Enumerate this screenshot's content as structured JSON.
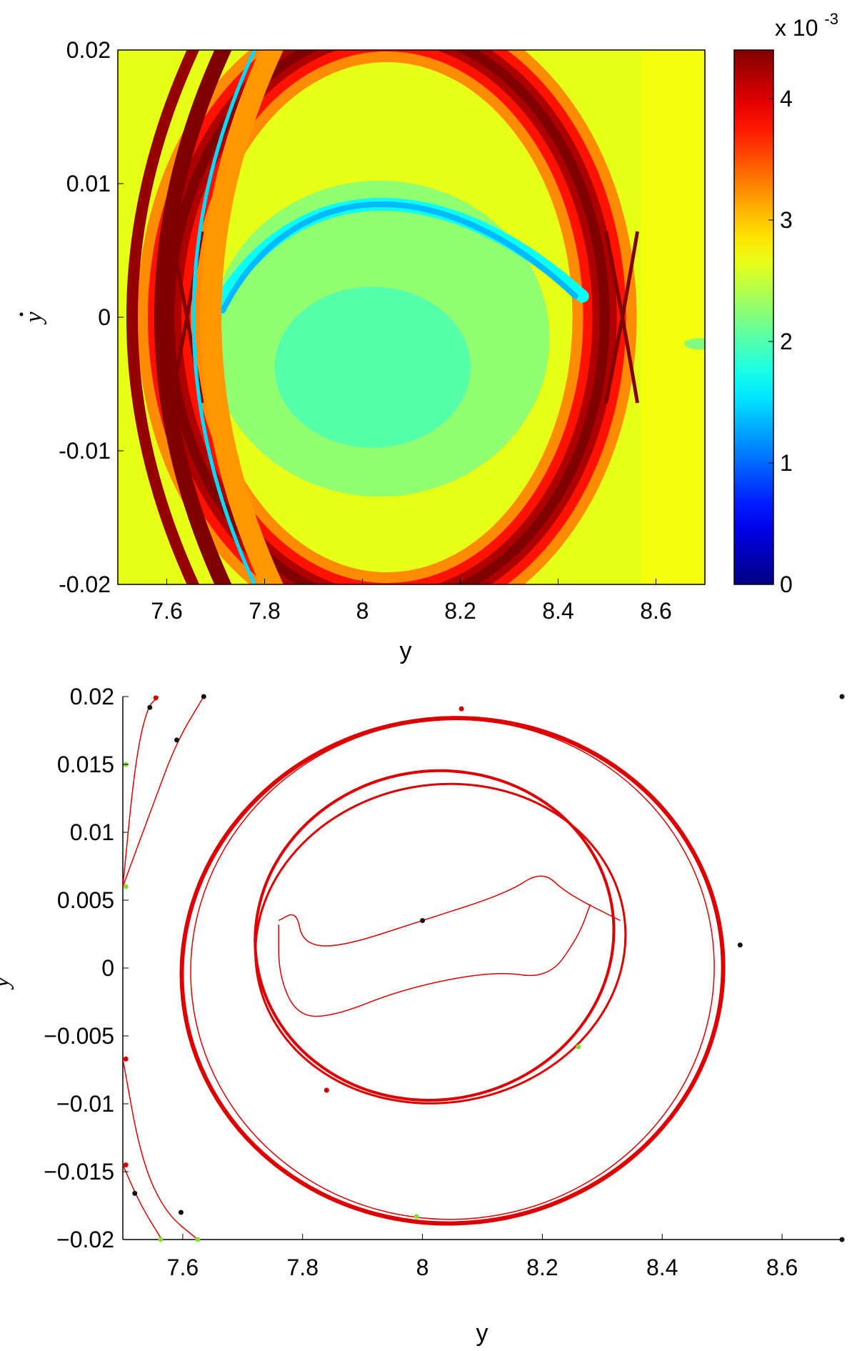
{
  "chart_data": [
    {
      "type": "heatmap",
      "title": "",
      "xlabel": "y",
      "ylabel": "y",
      "ylabel_has_dot": true,
      "xlim": [
        7.5,
        8.7
      ],
      "ylim": [
        -0.02,
        0.02
      ],
      "x_ticks": [
        "7.6",
        "7.8",
        "8",
        "8.2",
        "8.4",
        "8.6"
      ],
      "x_tick_values": [
        7.6,
        7.8,
        8.0,
        8.2,
        8.4,
        8.6
      ],
      "y_ticks": [
        "0.02",
        "0.01",
        "0",
        "-0.01",
        "-0.02"
      ],
      "y_tick_values": [
        0.02,
        0.01,
        0,
        -0.01,
        -0.02
      ],
      "colorbar": {
        "colormap": "jet",
        "range": [
          0,
          4.4
        ],
        "ticks": [
          "0",
          "1",
          "2",
          "3",
          "4"
        ],
        "tick_values": [
          0,
          1,
          2,
          3,
          4
        ],
        "multiplier_prefix": "x 10",
        "multiplier_exponent": "-3"
      },
      "features": {
        "outer_ridge_center": [
          8.05,
          0.0
        ],
        "outer_ridge_radius_x": 0.445,
        "outer_ridge_radius_y": 0.0215,
        "saddle_points": [
          [
            7.64,
            0.0
          ],
          [
            8.53,
            0.0
          ]
        ],
        "inner_low_arc_peak": [
          8.03,
          0.0093
        ],
        "left_ridges_x_at_zero": [
          7.53,
          7.58,
          7.62
        ]
      }
    },
    {
      "type": "line",
      "title": "",
      "xlabel": "y",
      "ylabel": "y",
      "xlim": [
        7.5,
        8.7
      ],
      "ylim": [
        -0.02,
        0.02
      ],
      "x_ticks": [
        "7.6",
        "7.8",
        "8",
        "8.2",
        "8.4",
        "8.6"
      ],
      "x_tick_values": [
        7.6,
        7.8,
        8.0,
        8.2,
        8.4,
        8.6
      ],
      "y_ticks": [
        "0.02",
        "0.015",
        "0.01",
        "0.005",
        "0",
        "−0.005",
        "−0.01",
        "−0.015",
        "−0.02"
      ],
      "y_tick_values": [
        0.02,
        0.015,
        0.01,
        0.005,
        0,
        -0.005,
        -0.01,
        -0.015,
        -0.02
      ],
      "series_color": "#dd0000",
      "series": [
        {
          "kind": "ellipse",
          "cx": 8.05,
          "cy": -0.0002,
          "rx": 0.452,
          "ry": 0.0186,
          "rot": -6,
          "stroke": 6
        },
        {
          "kind": "ellipse",
          "cx": 8.05,
          "cy": -0.0001,
          "rx": 0.437,
          "ry": 0.0184,
          "rot": -6,
          "stroke": 1.5
        },
        {
          "kind": "ellipse",
          "cx": 8.02,
          "cy": 0.0024,
          "rx": 0.3,
          "ry": 0.0121,
          "rot": -10,
          "stroke": 4
        },
        {
          "kind": "ellipse",
          "cx": 8.03,
          "cy": 0.0018,
          "rx": 0.31,
          "ry": 0.0117,
          "rot": -10,
          "stroke": 3
        },
        {
          "kind": "curve",
          "points": [
            [
              7.76,
              0.0035
            ],
            [
              7.79,
              0.0042
            ],
            [
              7.8,
              0.0018
            ],
            [
              7.86,
              0.0015
            ],
            [
              8.0,
              0.0035
            ],
            [
              8.14,
              0.0055
            ],
            [
              8.2,
              0.0072
            ],
            [
              8.24,
              0.0055
            ],
            [
              8.33,
              0.0035
            ]
          ],
          "stroke": 1.5
        },
        {
          "kind": "curve",
          "points": [
            [
              7.76,
              0.0032
            ],
            [
              7.76,
              -0.0005
            ],
            [
              7.79,
              -0.0035
            ],
            [
              7.85,
              -0.0036
            ],
            [
              7.97,
              -0.0015
            ],
            [
              8.12,
              -0.0002
            ],
            [
              8.21,
              -0.0008
            ],
            [
              8.26,
              0.0023
            ],
            [
              8.28,
              0.0047
            ]
          ],
          "stroke": 1.5
        },
        {
          "kind": "curve",
          "points": [
            [
              7.5,
              0.006
            ],
            [
              7.52,
              0.015
            ],
            [
              7.54,
              0.0192
            ],
            [
              7.56,
              0.02
            ]
          ],
          "stroke": 1.5
        },
        {
          "kind": "curve",
          "points": [
            [
              7.5,
              0.006
            ],
            [
              7.55,
              0.012
            ],
            [
              7.59,
              0.0167
            ],
            [
              7.635,
              0.02
            ]
          ],
          "stroke": 1.5
        },
        {
          "kind": "curve",
          "points": [
            [
              7.5,
              -0.0067
            ],
            [
              7.53,
              -0.014
            ],
            [
              7.57,
              -0.018
            ],
            [
              7.625,
              -0.02
            ]
          ],
          "stroke": 1.5
        },
        {
          "kind": "curve",
          "points": [
            [
              7.5,
              -0.0145
            ],
            [
              7.53,
              -0.0175
            ],
            [
              7.565,
              -0.02
            ]
          ],
          "stroke": 1.5
        }
      ],
      "markers": [
        {
          "x": 7.555,
          "y": 0.0199,
          "color": "#cc0000"
        },
        {
          "x": 7.545,
          "y": 0.0192,
          "color": "#111111"
        },
        {
          "x": 7.59,
          "y": 0.0168,
          "color": "#111111"
        },
        {
          "x": 7.635,
          "y": 0.02,
          "color": "#111111"
        },
        {
          "x": 7.505,
          "y": 0.015,
          "color": "#88dd33"
        },
        {
          "x": 7.505,
          "y": 0.006,
          "color": "#88dd33"
        },
        {
          "x": 7.505,
          "y": -0.0067,
          "color": "#cc0000"
        },
        {
          "x": 7.505,
          "y": -0.0145,
          "color": "#cc0000"
        },
        {
          "x": 7.52,
          "y": -0.0166,
          "color": "#111111"
        },
        {
          "x": 7.597,
          "y": -0.018,
          "color": "#111111"
        },
        {
          "x": 7.563,
          "y": -0.02,
          "color": "#88dd33"
        },
        {
          "x": 7.625,
          "y": -0.02,
          "color": "#88dd33"
        },
        {
          "x": 8.0,
          "y": 0.0035,
          "color": "#111111"
        },
        {
          "x": 8.53,
          "y": 0.0017,
          "color": "#111111"
        },
        {
          "x": 8.065,
          "y": 0.0191,
          "color": "#cc0000"
        },
        {
          "x": 7.99,
          "y": -0.0183,
          "color": "#88dd33"
        },
        {
          "x": 8.26,
          "y": -0.0058,
          "color": "#88dd33"
        },
        {
          "x": 7.84,
          "y": -0.009,
          "color": "#cc0000"
        },
        {
          "x": 8.7,
          "y": 0.02,
          "color": "#111111"
        },
        {
          "x": 8.7,
          "y": -0.02,
          "color": "#111111"
        }
      ]
    }
  ]
}
